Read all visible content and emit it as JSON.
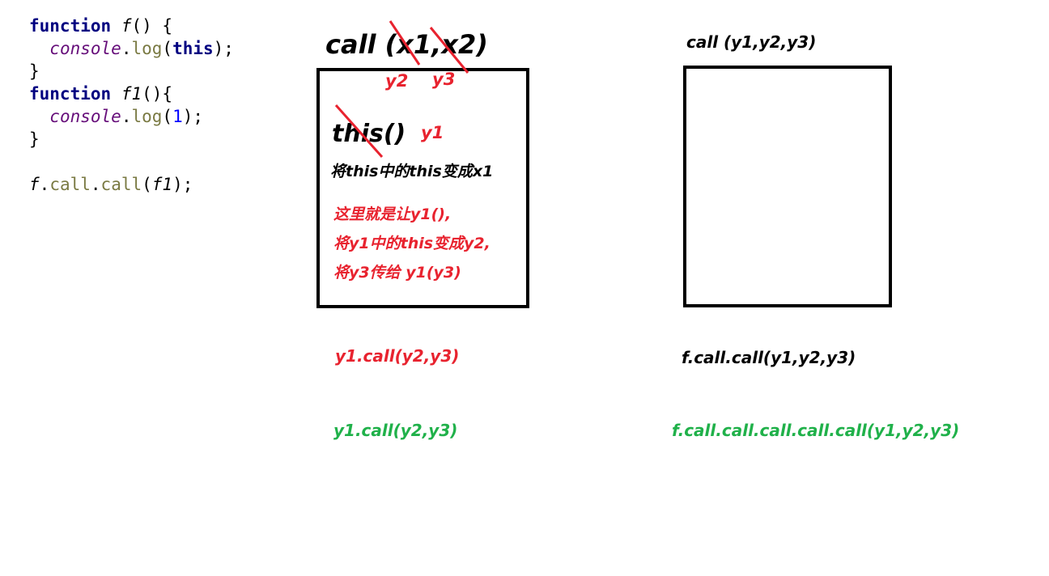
{
  "code": {
    "line1": {
      "kw": "function",
      "fn": "f",
      "rest": "() {"
    },
    "line2": {
      "indent": "  ",
      "obj": "console",
      "dot": ".",
      "meth": "log",
      "open": "(",
      "kw": "this",
      "close": ");"
    },
    "line3": "}",
    "line4": {
      "kw": "function",
      "fn": "f1",
      "rest": "(){"
    },
    "line5": {
      "indent": "  ",
      "obj": "console",
      "dot": ".",
      "meth": "log",
      "open": "(",
      "num": "1",
      "close": ");"
    },
    "line6": "}",
    "line8": {
      "obj": "f",
      "dot1": ".",
      "meth1": "call",
      "dot2": ".",
      "meth2": "call",
      "open": "(",
      "fn": "f1",
      "close": ");"
    }
  },
  "left_diagram": {
    "title": "call (x1,x2)",
    "label_y2": "y2",
    "label_y3": "y3",
    "this_call": "this()",
    "label_y1": "y1",
    "note_black": "将this中的this变成x1",
    "note_red_1": "这里就是让y1(),",
    "note_red_2": "将y1中的this变成y2,",
    "note_red_3": "将y3传给 y1(y3)",
    "below_red": "y1.call(y2,y3)",
    "below_green": "y1.call(y2,y3)"
  },
  "right_diagram": {
    "title": "call  (y1,y2,y3)",
    "below_black": "f.call.call(y1,y2,y3)",
    "below_green": "f.call.call.call.call.call(y1,y2,y3)"
  },
  "colors": {
    "red": "#e8232f",
    "green": "#20b14a",
    "keyword": "#000080",
    "object": "#660e7a",
    "method": "#7a7a43",
    "number": "#0000ff"
  }
}
